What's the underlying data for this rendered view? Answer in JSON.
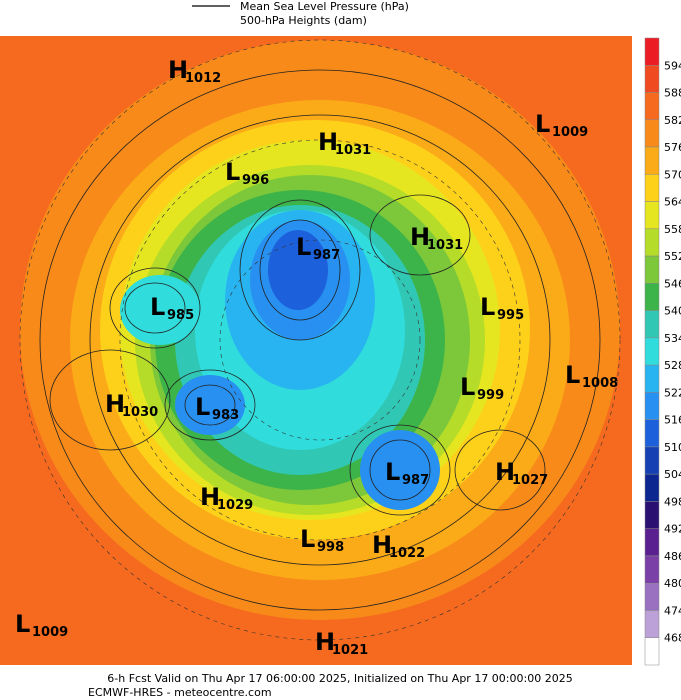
{
  "legend": {
    "line_label": "Mean Sea Level Pressure (hPa)",
    "fill_label": "500-hPa Heights (dam)"
  },
  "pressure_systems": [
    {
      "type": "H",
      "value": 1012
    },
    {
      "type": "H",
      "value": 1031
    },
    {
      "type": "L",
      "value": 996
    },
    {
      "type": "L",
      "value": 1009
    },
    {
      "type": "H",
      "value": 1031
    },
    {
      "type": "L",
      "value": 987
    },
    {
      "type": "L",
      "value": 985
    },
    {
      "type": "L",
      "value": 995
    },
    {
      "type": "L",
      "value": 1008
    },
    {
      "type": "H",
      "value": 1030
    },
    {
      "type": "L",
      "value": 983
    },
    {
      "type": "L",
      "value": 999
    },
    {
      "type": "H",
      "value": 1027
    },
    {
      "type": "L",
      "value": 987
    },
    {
      "type": "H",
      "value": 1029
    },
    {
      "type": "L",
      "value": 998
    },
    {
      "type": "H",
      "value": 1022
    },
    {
      "type": "L",
      "value": 1009
    },
    {
      "type": "H",
      "value": 1021
    }
  ],
  "colorbar": {
    "levels": [
      594,
      588,
      582,
      576,
      570,
      564,
      558,
      552,
      546,
      540,
      534,
      528,
      522,
      516,
      510,
      504,
      498,
      492,
      486,
      480,
      474,
      468
    ],
    "colors": [
      "#ec1c24",
      "#f04a20",
      "#f56a1e",
      "#f88a1a",
      "#fbaa18",
      "#fdd01a",
      "#e6e620",
      "#b4dc28",
      "#7cc83a",
      "#3cb44a",
      "#30c8b4",
      "#30dcdc",
      "#28b4f0",
      "#2890f0",
      "#1c60dc",
      "#1440b4",
      "#0c2890",
      "#2a1070",
      "#5a2090",
      "#7a40a8",
      "#9a70c0",
      "#bca0d8",
      "#ffffff"
    ]
  },
  "footer": {
    "line1": "6-h Fcst Valid on Thu Apr 17 06:00:00 2025, Initialized on Thu Apr 17 00:00:00 2025",
    "line2": "ECMWF-HRES - meteocentre.com"
  }
}
